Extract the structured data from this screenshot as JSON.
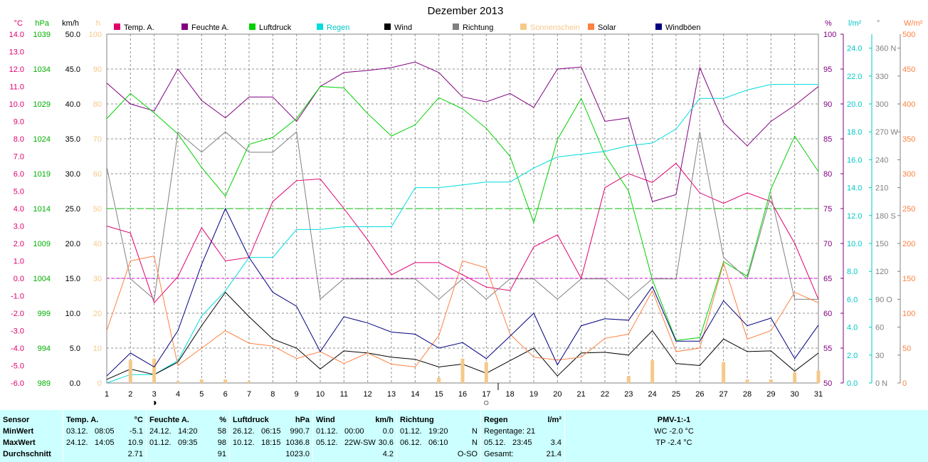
{
  "chart_data": {
    "type": "line",
    "title": "Dezember 2013",
    "days": [
      "1",
      "2",
      "3",
      "4",
      "5",
      "6",
      "7",
      "8",
      "9",
      "10",
      "11",
      "12",
      "13",
      "14",
      "15",
      "16",
      "17",
      "18",
      "19",
      "20",
      "21",
      "22",
      "23",
      "24",
      "25",
      "26",
      "27",
      "28",
      "29",
      "30",
      "31"
    ],
    "axes": [
      {
        "id": "temp",
        "unit": "°C",
        "color": "#e0006e",
        "min": -6,
        "max": 14,
        "ticks": [
          "14.0",
          "13.0",
          "12.0",
          "11.0",
          "10.0",
          "9.0",
          "8.0",
          "7.0",
          "6.0",
          "5.0",
          "4.0",
          "3.0",
          "2.0",
          "1.0",
          "0.0",
          "-1.0",
          "-2.0",
          "-3.0",
          "-4.0",
          "-5.0",
          "-6.0"
        ]
      },
      {
        "id": "pressure",
        "unit": "hPa",
        "color": "#00b000",
        "min": 989,
        "max": 1039,
        "ticks": [
          "1039",
          "1034",
          "1029",
          "1024",
          "1019",
          "1014",
          "1009",
          "1004",
          "999",
          "994",
          "989"
        ]
      },
      {
        "id": "wind",
        "unit": "km/h",
        "color": "#000000",
        "min": 0,
        "max": 50,
        "ticks": [
          "50.0",
          "45.0",
          "40.0",
          "35.0",
          "30.0",
          "25.0",
          "20.0",
          "15.0",
          "10.0",
          "5.0",
          "0.0"
        ]
      },
      {
        "id": "sun",
        "unit": "h",
        "color": "#f5c98a",
        "min": 0,
        "max": 100,
        "ticks": [
          "100",
          "90",
          "80",
          "70",
          "60",
          "50",
          "40",
          "30",
          "20",
          "10",
          "0"
        ]
      },
      {
        "id": "humidity",
        "unit": "%",
        "color": "#800080",
        "min": 50,
        "max": 100,
        "ticks": [
          "100",
          "95",
          "90",
          "85",
          "80",
          "75",
          "70",
          "65",
          "60",
          "55",
          "50"
        ]
      },
      {
        "id": "rain",
        "unit": "l/m²",
        "color": "#00c8c8",
        "min": 0,
        "max": 25,
        "ticks": [
          "24.0",
          "22.0",
          "20.0",
          "18.0",
          "16.0",
          "14.0",
          "12.0",
          "10.0",
          "8.0",
          "6.0",
          "4.0",
          "2.0",
          "0.0"
        ]
      },
      {
        "id": "direction",
        "unit": "°",
        "color": "#808080",
        "min": 0,
        "max": 375,
        "ticks": [
          "360 N",
          "330",
          "300",
          "270 W",
          "240",
          "210",
          "180 S",
          "150",
          "120",
          "90  O",
          "60",
          "30",
          "0   N"
        ]
      },
      {
        "id": "solar",
        "unit": "W/m²",
        "color": "#ff8040",
        "min": 0,
        "max": 500,
        "ticks": [
          "500",
          "450",
          "400",
          "350",
          "300",
          "250",
          "200",
          "150",
          "100",
          "50",
          "0"
        ]
      }
    ],
    "series": [
      {
        "name": "Temp. A.",
        "axis": "temp",
        "color": "#e0006e",
        "values": [
          3.0,
          2.6,
          -1.4,
          0.1,
          2.9,
          1.0,
          1.2,
          4.4,
          5.6,
          5.7,
          4.0,
          2.2,
          0.2,
          0.9,
          0.9,
          0.2,
          -0.5,
          -0.7,
          1.8,
          2.5,
          0.0,
          5.2,
          6.0,
          5.5,
          6.6,
          4.9,
          4.3,
          4.9,
          4.4,
          2.0,
          -1.2
        ]
      },
      {
        "name": "Feuchte A.",
        "axis": "humidity",
        "color": "#800080",
        "values": [
          93,
          90,
          89,
          95,
          90.5,
          88,
          91,
          91,
          87.5,
          92.5,
          94.5,
          94.8,
          95.2,
          96,
          94.5,
          91,
          90.3,
          91.5,
          89.5,
          95,
          95.3,
          87.5,
          88,
          76,
          77,
          95.2,
          87.3,
          84,
          87.5,
          89.8,
          92.5
        ]
      },
      {
        "name": "Luftdruck",
        "axis": "pressure",
        "color": "#00d000",
        "values": [
          1026.9,
          1030.5,
          1027.7,
          1024.7,
          1019.9,
          1015.8,
          1023.2,
          1024.2,
          1026.9,
          1031.5,
          1031.3,
          1027.6,
          1024.4,
          1026.0,
          1029.9,
          1028.3,
          1025.5,
          1021.5,
          1012.0,
          1023.9,
          1029.8,
          1021.7,
          1016.5,
          1003.8,
          995.1,
          995.5,
          1006.4,
          1004.3,
          1016.8,
          1024.4,
          1019.3
        ]
      },
      {
        "name": "Regen",
        "axis": "rain",
        "color": "#00dcdc",
        "values": [
          0,
          0.6,
          0.6,
          1.6,
          4.8,
          6.6,
          9.0,
          9.0,
          11.0,
          11.0,
          11.2,
          11.2,
          11.2,
          14.0,
          14.0,
          14.2,
          14.4,
          14.4,
          15.4,
          16.2,
          16.4,
          16.6,
          17.0,
          17.2,
          18.2,
          20.4,
          20.4,
          21.0,
          21.4,
          21.4,
          21.4
        ]
      },
      {
        "name": "Wind",
        "axis": "wind",
        "color": "#000000",
        "values": [
          0.5,
          2.0,
          1.2,
          3.0,
          8.2,
          13.0,
          9.5,
          6.3,
          5.0,
          2.0,
          4.6,
          4.3,
          3.7,
          3.4,
          2.3,
          2.7,
          1.4,
          3.2,
          5.0,
          1.0,
          4.3,
          4.4,
          4.0,
          7.5,
          2.8,
          2.5,
          6.3,
          4.5,
          4.6,
          1.7,
          4.3
        ]
      },
      {
        "name": "Richtung",
        "axis": "direction",
        "color": "#808080",
        "values": [
          232,
          112,
          90,
          270,
          248,
          270,
          248,
          248,
          270,
          90,
          112,
          112,
          112,
          112,
          90,
          112,
          90,
          112,
          112,
          90,
          112,
          112,
          90,
          112,
          112,
          270,
          135,
          112,
          202,
          90,
          90
        ]
      },
      {
        "name": "Sonnenschein",
        "axis": "sun",
        "color": "#f5c98a",
        "bars": [
          0,
          6.5,
          7,
          0.5,
          1,
          1,
          0.5,
          0,
          0,
          0,
          0,
          0,
          0,
          0,
          1.5,
          7,
          6,
          0,
          0,
          0,
          0,
          0,
          2,
          6.5,
          0,
          0,
          6,
          1,
          1,
          3,
          3.5
        ]
      },
      {
        "name": "Solar",
        "axis": "solar",
        "color": "#ff8040",
        "values": [
          75,
          175,
          182,
          25,
          50,
          75,
          57,
          53,
          35,
          45,
          28,
          43,
          27,
          23,
          68,
          175,
          165,
          70,
          37,
          33,
          37,
          64,
          70,
          132,
          45,
          50,
          172,
          63,
          75,
          130,
          115
        ]
      },
      {
        "name": "Windböen",
        "axis": "wind",
        "color": "#000080",
        "values": [
          1.0,
          4.3,
          2.3,
          7.5,
          17.0,
          25.0,
          18.0,
          13.0,
          11.0,
          4.5,
          9.5,
          8.6,
          7.3,
          7.0,
          5.0,
          5.8,
          3.5,
          6.7,
          10.0,
          2.6,
          8.2,
          9.2,
          9.0,
          13.8,
          6.0,
          6.0,
          11.8,
          8.2,
          9.3,
          3.5,
          8.3
        ]
      }
    ],
    "moon": [
      {
        "day": "3",
        "symbol": "◑"
      },
      {
        "day": "17",
        "symbol": "○"
      }
    ],
    "grid": true
  },
  "stats": {
    "headers": {
      "sensor": "Sensor",
      "temp": "Temp. A.",
      "temp_unit": "°C",
      "hum": "Feuchte A.",
      "hum_unit": "%",
      "press": "Luftdruck",
      "press_unit": "hPa",
      "wind": "Wind",
      "wind_unit": "km/h",
      "dir": "Richtung",
      "rain": "Regen",
      "rain_unit": "l/m²",
      "pmv": "PMV-1:-1"
    },
    "row_labels": {
      "min": "MinWert",
      "max": "MaxWert",
      "avg": "Durchschnitt"
    },
    "temp": {
      "min_date": "03.12.",
      "min_time": "08:05",
      "min_val": "-5.1",
      "max_date": "24.12.",
      "max_time": "14:05",
      "max_val": "10.9",
      "avg": "2.71"
    },
    "hum": {
      "min_date": "24.12.",
      "min_time": "14:20",
      "min_val": "58",
      "max_date": "01.12.",
      "max_time": "09:35",
      "max_val": "98",
      "avg": "91"
    },
    "press": {
      "min_date": "26.12.",
      "min_time": "06:15",
      "min_val": "990.7",
      "max_date": "10.12.",
      "max_time": "18:15",
      "max_val": "1036.8",
      "avg": "1023.0"
    },
    "wind": {
      "min_date": "01.12.",
      "min_time": "00:00",
      "min_val": "0.0",
      "max_date": "05.12.",
      "max_time": "22W-SW",
      "max_val": "30.6",
      "avg": "4.2"
    },
    "dir": {
      "min_date": "01.12.",
      "min_time": "19:20",
      "min_val": "N",
      "max_date": "06.12.",
      "max_time": "06:10",
      "max_val": "N",
      "avg": "O-SO"
    },
    "rain": {
      "days_label": "Regentage: 21",
      "max_date": "05.12.",
      "max_time": "23:45",
      "max_val": "3.4",
      "total_label": "Gesamt:",
      "total": "21.4"
    },
    "pmv": {
      "wc": "WC -2.0 °C",
      "tp": "TP -2.4 °C"
    }
  }
}
